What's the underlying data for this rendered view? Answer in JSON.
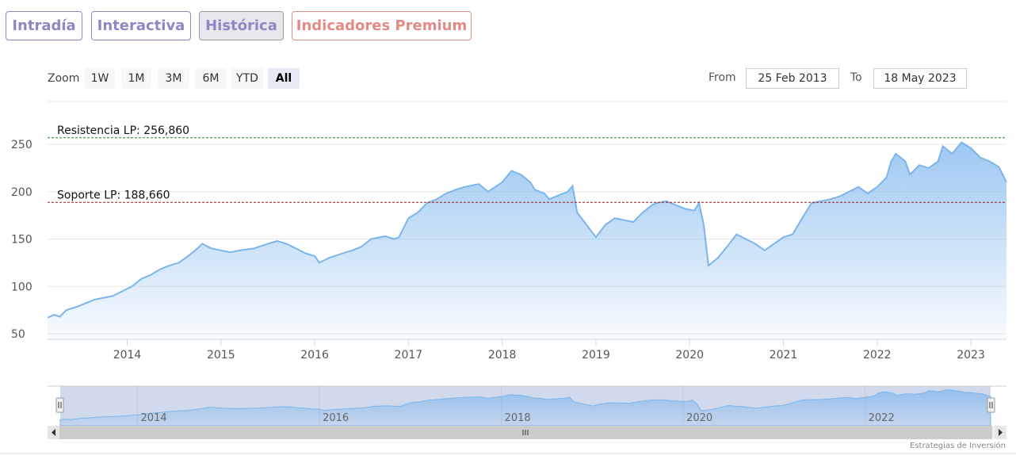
{
  "tabs": [
    {
      "label": "Intradía"
    },
    {
      "label": "Interactiva"
    },
    {
      "label": "Histórica"
    },
    {
      "label": "Indicadores Premium"
    }
  ],
  "zoom": {
    "label": "Zoom",
    "buttons": [
      "1W",
      "1M",
      "3M",
      "6M",
      "YTD",
      "All"
    ],
    "active": "All"
  },
  "range": {
    "from_label": "From",
    "from_value": "25 Feb 2013",
    "to_label": "To",
    "to_value": "18 May 2023"
  },
  "credit": "Estrategias de Inversión",
  "colors": {
    "line": "#7cb5ec",
    "resistance": "#1e8c1e",
    "support": "#a01818",
    "tab": "#8e87c4",
    "premium": "#e28b84"
  },
  "chart_data": {
    "type": "area",
    "title": "",
    "xlabel": "",
    "ylabel": "",
    "x_tick_labels": [
      "2014",
      "2015",
      "2016",
      "2017",
      "2018",
      "2019",
      "2020",
      "2021",
      "2022",
      "2023"
    ],
    "y_tick_labels": [
      "50",
      "100",
      "150",
      "200",
      "250"
    ],
    "xlim": [
      2013.15,
      2023.38
    ],
    "ylim": [
      50,
      270
    ],
    "grid": "horizontal",
    "annotations": [
      {
        "label": "Resistencia LP: 256,860",
        "value": 256.86
      },
      {
        "label": "Soporte LP: 188,660",
        "value": 188.66
      }
    ],
    "navigator_labels": [
      "2014",
      "2016",
      "2018",
      "2020",
      "2022"
    ],
    "x": [
      2013.15,
      2013.22,
      2013.28,
      2013.35,
      2013.45,
      2013.55,
      2013.65,
      2013.75,
      2013.85,
      2013.95,
      2014.05,
      2014.15,
      2014.25,
      2014.35,
      2014.45,
      2014.55,
      2014.65,
      2014.75,
      2014.8,
      2014.9,
      2015.0,
      2015.1,
      2015.2,
      2015.35,
      2015.5,
      2015.6,
      2015.7,
      2015.8,
      2015.9,
      2016.0,
      2016.05,
      2016.15,
      2016.3,
      2016.4,
      2016.5,
      2016.6,
      2016.75,
      2016.85,
      2016.9,
      2017.0,
      2017.1,
      2017.2,
      2017.3,
      2017.4,
      2017.5,
      2017.6,
      2017.75,
      2017.85,
      2018.0,
      2018.1,
      2018.2,
      2018.3,
      2018.35,
      2018.45,
      2018.5,
      2018.6,
      2018.7,
      2018.75,
      2018.8,
      2018.9,
      2019.0,
      2019.1,
      2019.2,
      2019.3,
      2019.4,
      2019.5,
      2019.6,
      2019.65,
      2019.75,
      2019.85,
      2019.95,
      2020.05,
      2020.1,
      2020.15,
      2020.2,
      2020.3,
      2020.4,
      2020.5,
      2020.6,
      2020.7,
      2020.8,
      2020.9,
      2021.0,
      2021.1,
      2021.2,
      2021.3,
      2021.4,
      2021.5,
      2021.6,
      2021.7,
      2021.8,
      2021.9,
      2022.0,
      2022.1,
      2022.15,
      2022.2,
      2022.3,
      2022.35,
      2022.45,
      2022.55,
      2022.65,
      2022.7,
      2022.8,
      2022.9,
      2023.0,
      2023.1,
      2023.2,
      2023.3,
      2023.38
    ],
    "values": [
      67,
      70,
      68,
      75,
      78,
      82,
      86,
      88,
      90,
      95,
      100,
      108,
      112,
      118,
      122,
      125,
      132,
      140,
      145,
      140,
      138,
      136,
      138,
      140,
      145,
      148,
      145,
      140,
      135,
      132,
      125,
      130,
      135,
      138,
      142,
      150,
      153,
      150,
      152,
      172,
      178,
      188,
      192,
      198,
      202,
      205,
      208,
      200,
      210,
      222,
      218,
      210,
      202,
      198,
      192,
      196,
      200,
      206,
      178,
      165,
      152,
      165,
      172,
      170,
      168,
      178,
      186,
      188,
      190,
      186,
      182,
      180,
      188,
      165,
      122,
      130,
      142,
      155,
      150,
      145,
      138,
      145,
      152,
      155,
      172,
      188,
      190,
      192,
      195,
      200,
      205,
      198,
      205,
      215,
      232,
      240,
      232,
      218,
      228,
      225,
      232,
      248,
      240,
      252,
      246,
      236,
      232,
      226,
      210
    ]
  }
}
